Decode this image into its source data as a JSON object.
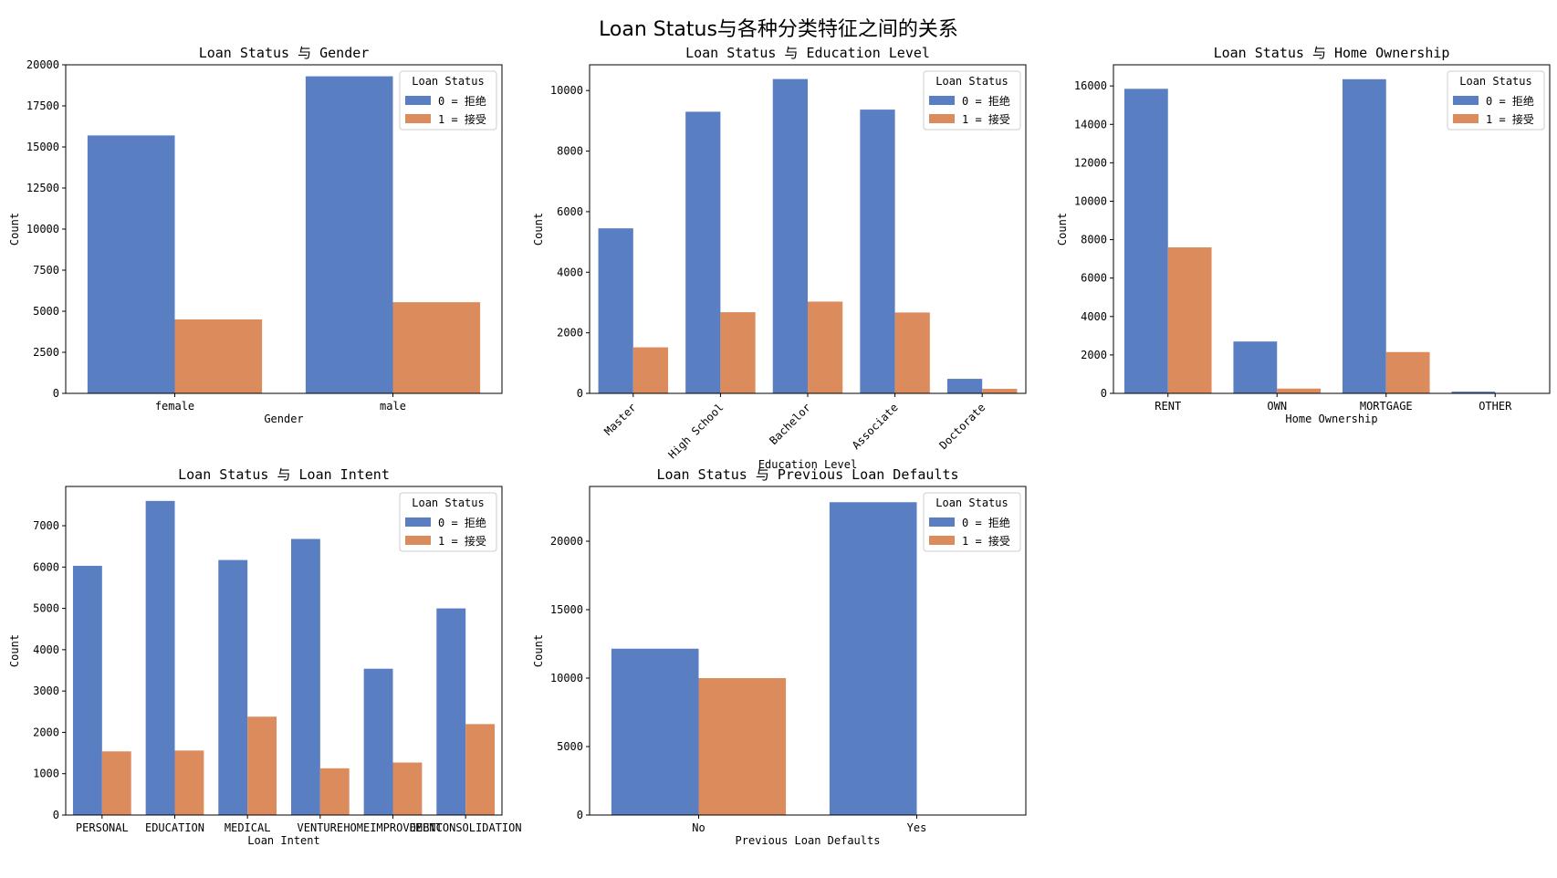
{
  "figure": {
    "title": "Loan Status与各种分类特征之间的关系"
  },
  "colors": {
    "rejected": "#5a7ec2",
    "accepted": "#dc8b5d"
  },
  "legend": {
    "title": "Loan Status",
    "labels": [
      "0 = 拒绝",
      "1 = 接受"
    ],
    "placement": "top-right"
  },
  "chart_data": [
    {
      "type": "bar",
      "title": "Loan Status 与 Gender",
      "xlabel": "Gender",
      "ylabel": "Count",
      "categories": [
        "female",
        "male"
      ],
      "series": [
        {
          "name": "0 = 拒绝",
          "values": [
            15700,
            19300
          ]
        },
        {
          "name": "1 = 接受",
          "values": [
            4500,
            5550
          ]
        }
      ],
      "ylim": [
        0,
        20000
      ],
      "yticks": [
        0,
        2500,
        5000,
        7500,
        10000,
        12500,
        15000,
        17500,
        20000
      ],
      "xtick_rotation": 0
    },
    {
      "type": "bar",
      "title": "Loan Status 与 Education Level",
      "xlabel": "Education Level",
      "ylabel": "Count",
      "categories": [
        "Master",
        "High School",
        "Bachelor",
        "Associate",
        "Doctorate"
      ],
      "series": [
        {
          "name": "0 = 拒绝",
          "values": [
            5450,
            9300,
            10380,
            9370,
            480
          ]
        },
        {
          "name": "1 = 接受",
          "values": [
            1520,
            2680,
            3030,
            2670,
            150
          ]
        }
      ],
      "ylim": [
        0,
        10850
      ],
      "yticks": [
        0,
        2000,
        4000,
        6000,
        8000,
        10000
      ],
      "xtick_rotation": -45
    },
    {
      "type": "bar",
      "title": "Loan Status 与 Home Ownership",
      "xlabel": "Home Ownership",
      "ylabel": "Count",
      "categories": [
        "RENT",
        "OWN",
        "MORTGAGE",
        "OTHER"
      ],
      "series": [
        {
          "name": "0 = 拒绝",
          "values": [
            15850,
            2700,
            16350,
            90
          ]
        },
        {
          "name": "1 = 接受",
          "values": [
            7600,
            250,
            2150,
            20
          ]
        }
      ],
      "ylim": [
        0,
        17100
      ],
      "yticks": [
        0,
        2000,
        4000,
        6000,
        8000,
        10000,
        12000,
        14000,
        16000
      ],
      "xtick_rotation": 0
    },
    {
      "type": "bar",
      "title": "Loan Status 与 Loan Intent",
      "xlabel": "Loan Intent",
      "ylabel": "Count",
      "categories": [
        "PERSONAL",
        "EDUCATION",
        "MEDICAL",
        "VENTURE",
        "HOMEIMPROVEMENT",
        "DEBTCONSOLIDATION"
      ],
      "series": [
        {
          "name": "0 = 拒绝",
          "values": [
            6030,
            7600,
            6170,
            6680,
            3540,
            5000
          ]
        },
        {
          "name": "1 = 接受",
          "values": [
            1540,
            1560,
            2380,
            1130,
            1270,
            2200
          ]
        }
      ],
      "ylim": [
        0,
        7950
      ],
      "yticks": [
        0,
        1000,
        2000,
        3000,
        4000,
        5000,
        6000,
        7000
      ],
      "xtick_rotation": 0
    },
    {
      "type": "bar",
      "title": "Loan Status 与 Previous Loan Defaults",
      "xlabel": "Previous Loan Defaults",
      "ylabel": "Count",
      "categories": [
        "No",
        "Yes"
      ],
      "series": [
        {
          "name": "0 = 拒绝",
          "values": [
            12150,
            22850
          ]
        },
        {
          "name": "1 = 接受",
          "values": [
            10000,
            0
          ]
        }
      ],
      "ylim": [
        0,
        24000
      ],
      "yticks": [
        0,
        5000,
        10000,
        15000,
        20000
      ],
      "xtick_rotation": 0
    }
  ]
}
